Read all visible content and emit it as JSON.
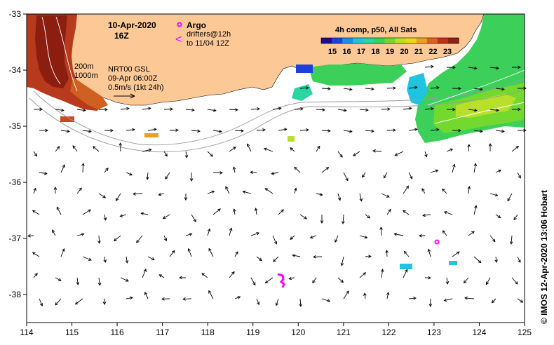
{
  "header": {
    "date": "10-Apr-2020",
    "time": "16Z"
  },
  "legend": {
    "argo_label": "Argo",
    "drifters_line1": "drifters@12h",
    "drifters_line2": "to 11/04 12Z",
    "argo_color": "#ff00ff"
  },
  "current_info": {
    "model": "NRT00 GSL",
    "date": "09-Apr 06:00Z",
    "scale": "0.5m/s (1kt 24h)"
  },
  "isobaths": {
    "label_200": "200m",
    "label_1000": "1000m"
  },
  "colorbar": {
    "title": "4h comp, p50, All Sats",
    "ticks": [
      "15",
      "16",
      "17",
      "18",
      "19",
      "20",
      "21",
      "22",
      "23"
    ],
    "colors": [
      "#1a0f8c",
      "#1f3fd9",
      "#1f8ce8",
      "#21c4e0",
      "#2ad4a3",
      "#3cd05a",
      "#74d92e",
      "#b8e02a",
      "#e8d820",
      "#f0a020",
      "#e06020",
      "#c03018",
      "#902010"
    ]
  },
  "axes": {
    "x_ticks": [
      "114",
      "115",
      "116",
      "117",
      "118",
      "119",
      "120",
      "121",
      "122",
      "123",
      "124",
      "125"
    ],
    "y_ticks": [
      "-33",
      "-34",
      "-35",
      "-36",
      "-37",
      "-38"
    ]
  },
  "credit": {
    "text": "© IMOS 12-Apr-2020 13:06 Hobart"
  },
  "colors": {
    "land": "#fbc896",
    "sea": "#ffffff",
    "arrow": "#000000",
    "drifter": "#ff00ff"
  }
}
